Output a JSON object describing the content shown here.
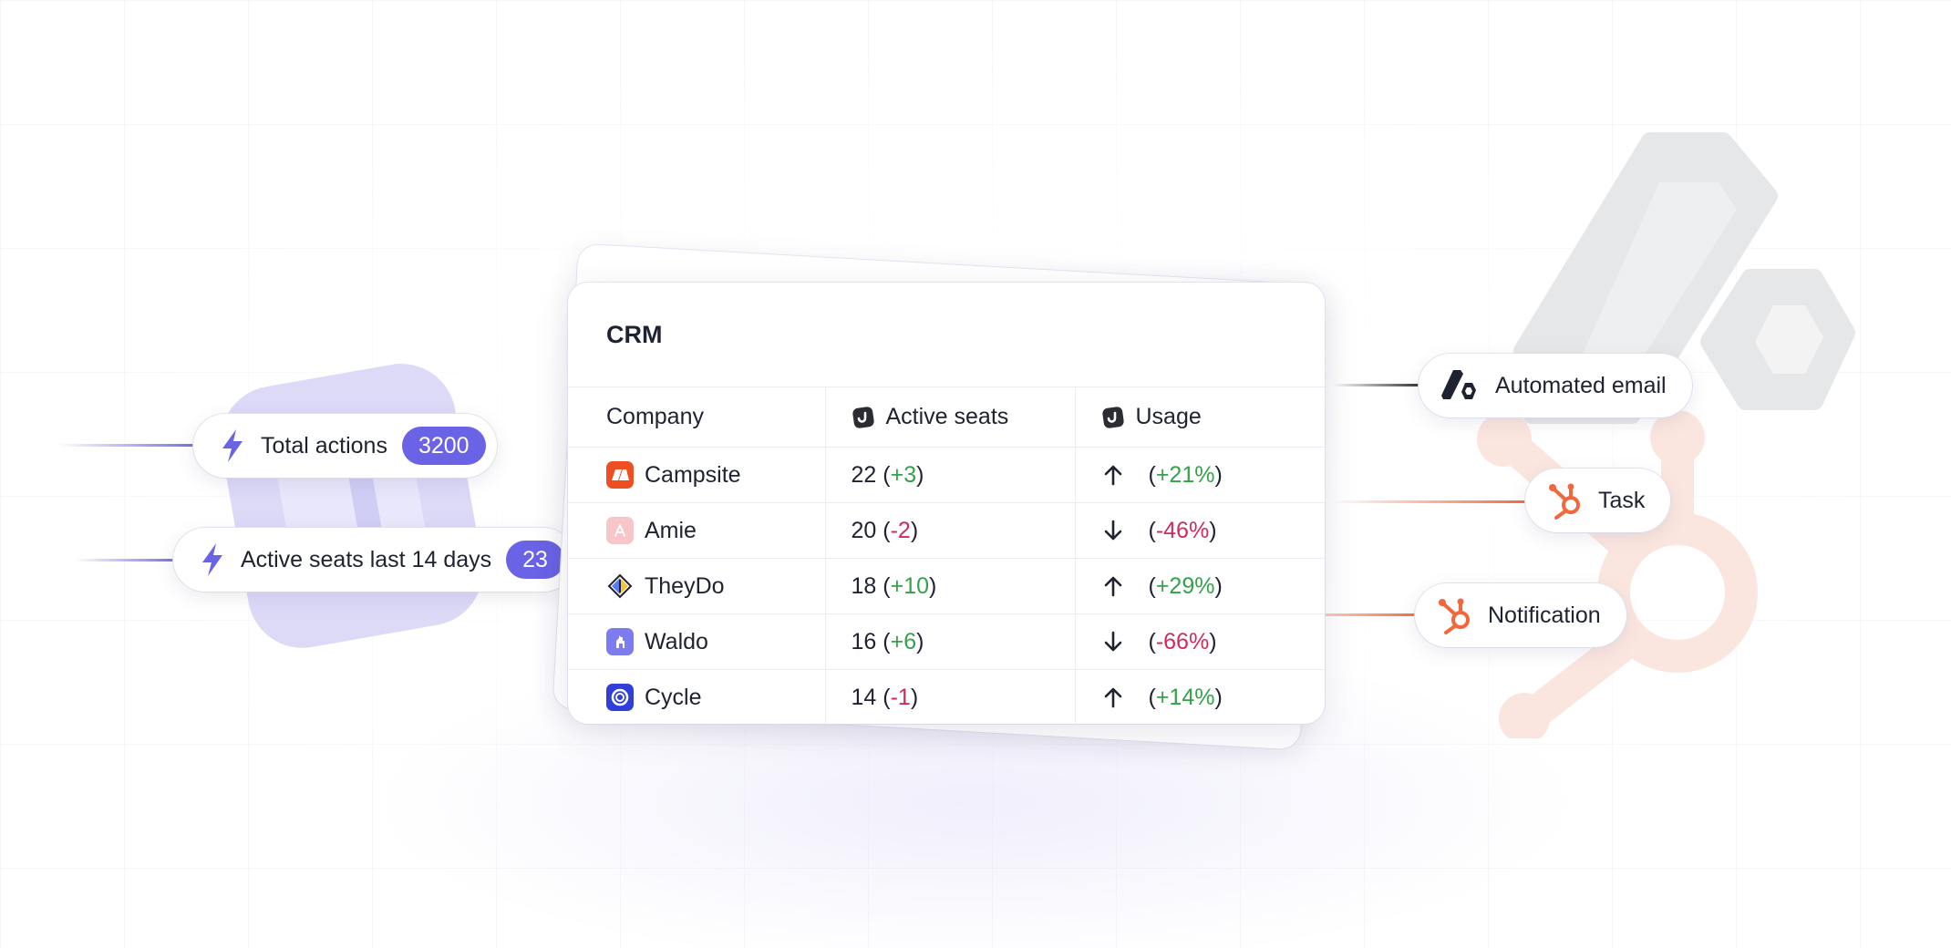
{
  "colors": {
    "accent": "#6b63e6",
    "hubspot": "#f0683c",
    "positive": "#36a04a",
    "negative": "#d02a5b"
  },
  "left_pills": [
    {
      "label": "Total actions",
      "count": "3200",
      "icon": "lightning-icon"
    },
    {
      "label": "Active seats last 14 days",
      "count": "23",
      "icon": "lightning-icon"
    }
  ],
  "crm": {
    "title": "CRM",
    "headers": {
      "company": "Company",
      "active_seats": "Active seats",
      "usage": "Usage"
    },
    "rows": [
      {
        "company": "Campsite",
        "seats": "22",
        "seats_delta": "+3",
        "trend": "up",
        "usage": "+21%"
      },
      {
        "company": "Amie",
        "seats": "20",
        "seats_delta": "-2",
        "trend": "down",
        "usage": "-46%"
      },
      {
        "company": "TheyDo",
        "seats": "18",
        "seats_delta": "+10",
        "trend": "up",
        "usage": "+29%"
      },
      {
        "company": "Waldo",
        "seats": "16",
        "seats_delta": "+6",
        "trend": "down",
        "usage": "-66%"
      },
      {
        "company": "Cycle",
        "seats": "14",
        "seats_delta": "-1",
        "trend": "up",
        "usage": "+14%"
      }
    ]
  },
  "right_pills": [
    {
      "label": "Automated email",
      "icon": "automated-email-logo-icon"
    },
    {
      "label": "Task",
      "icon": "hubspot-icon"
    },
    {
      "label": "Notification",
      "icon": "hubspot-icon"
    }
  ],
  "punct": {
    "open": "(",
    "close": ")"
  }
}
